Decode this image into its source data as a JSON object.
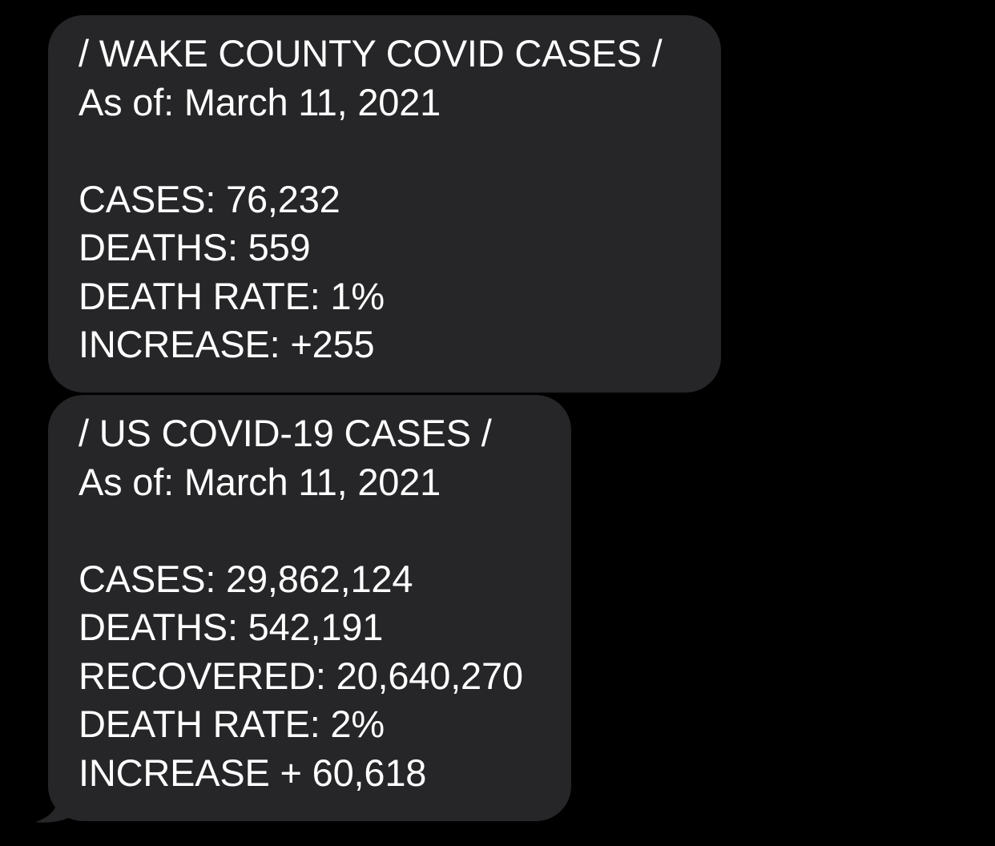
{
  "messages": [
    {
      "header_lines": [
        "/ WAKE COUNTY COVID CASES /",
        "As of: March 11, 2021"
      ],
      "stat_lines": [
        "CASES: 76,232",
        "DEATHS: 559",
        "DEATH RATE: 1%",
        "INCREASE: +255"
      ]
    },
    {
      "header_lines": [
        "/ US COVID-19 CASES /",
        "As of: March 11, 2021"
      ],
      "stat_lines": [
        "CASES: 29,862,124",
        "DEATHS: 542,191",
        "RECOVERED: 20,640,270",
        "DEATH RATE: 2%",
        "INCREASE + 60,618"
      ]
    }
  ],
  "colors": {
    "background": "#000000",
    "bubble": "#262628",
    "text": "#ffffff"
  }
}
